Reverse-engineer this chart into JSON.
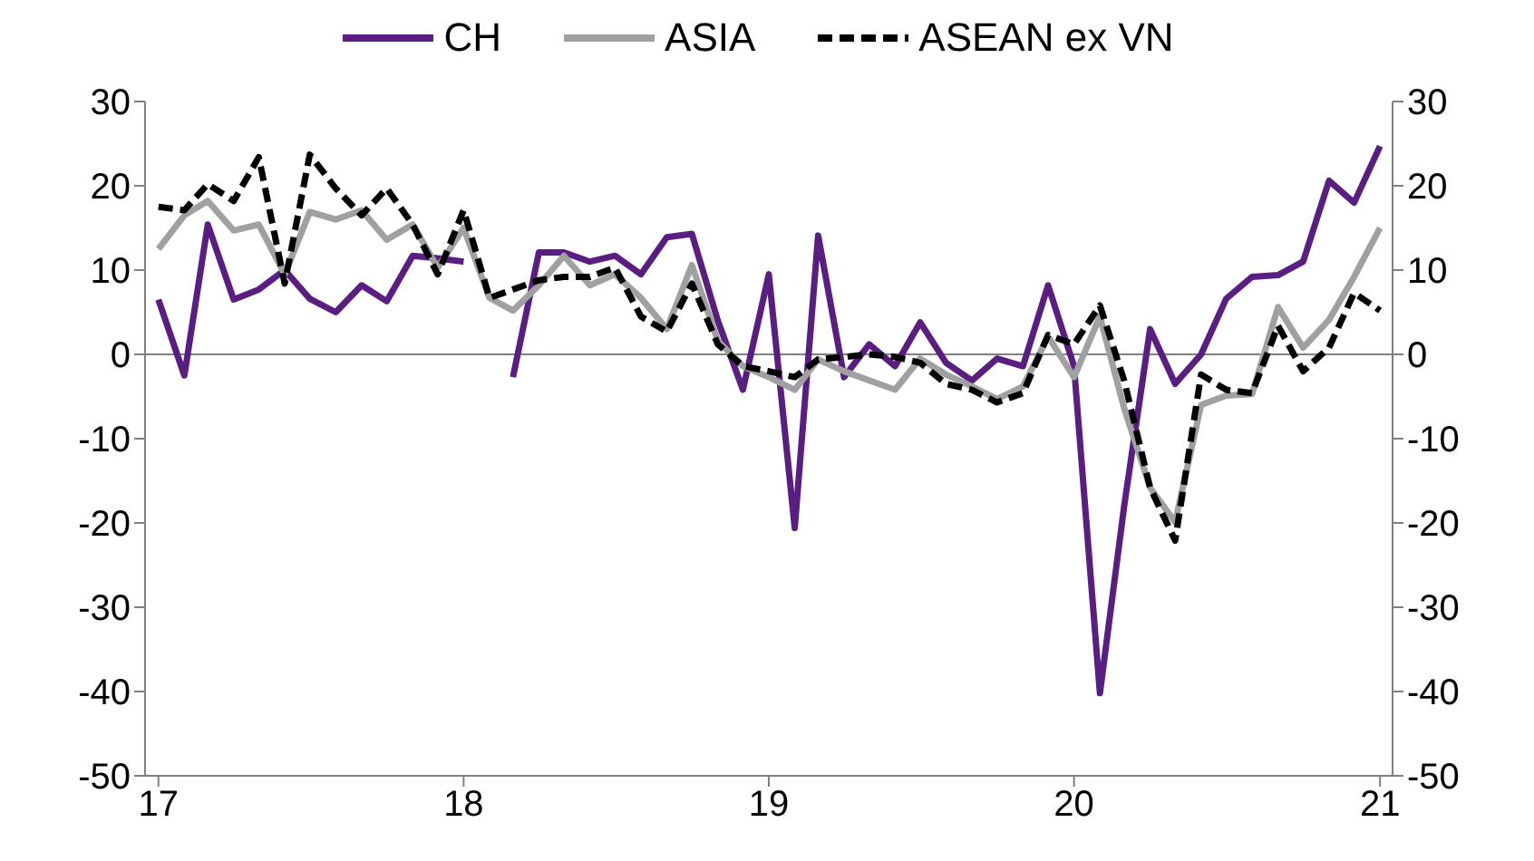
{
  "chart_data": {
    "type": "line",
    "x": [
      "2017-01",
      "2017-02",
      "2017-03",
      "2017-04",
      "2017-05",
      "2017-06",
      "2017-07",
      "2017-08",
      "2017-09",
      "2017-10",
      "2017-11",
      "2017-12",
      "2018-01",
      "2018-02",
      "2018-03",
      "2018-04",
      "2018-05",
      "2018-06",
      "2018-07",
      "2018-08",
      "2018-09",
      "2018-10",
      "2018-11",
      "2018-12",
      "2019-01",
      "2019-02",
      "2019-03",
      "2019-04",
      "2019-05",
      "2019-06",
      "2019-07",
      "2019-08",
      "2019-09",
      "2019-10",
      "2019-11",
      "2019-12",
      "2020-01",
      "2020-02",
      "2020-03",
      "2020-04",
      "2020-05",
      "2020-06",
      "2020-07",
      "2020-08",
      "2020-09",
      "2020-10",
      "2020-11",
      "2020-12",
      "2021-01"
    ],
    "series": [
      {
        "name": "CH",
        "color": "#5a1e82",
        "line_style": "solid",
        "values": [
          6.5,
          -2.5,
          15.4,
          6.5,
          7.7,
          10,
          6.6,
          5,
          8.2,
          6.3,
          11.7,
          11.4,
          11,
          null,
          -2.7,
          12.1,
          12.1,
          11,
          11.7,
          9.5,
          13.9,
          14.3,
          4,
          -4.2,
          9.5,
          -20.6,
          14.1,
          -2.7,
          1.2,
          -1.4,
          3.8,
          -1,
          -3.1,
          -0.5,
          -1.4,
          8.2,
          -1.4,
          -40.2,
          -18,
          3,
          -3.5,
          0,
          6.6,
          9.2,
          9.4,
          11,
          20.6,
          18,
          24.7
        ]
      },
      {
        "name": "ASIA",
        "color": "#a0a0a0",
        "line_style": "solid",
        "values": [
          12.5,
          16.5,
          18.2,
          14.7,
          15.4,
          9.5,
          16.9,
          16,
          17.1,
          13.6,
          15.4,
          10.3,
          15,
          6.7,
          5.2,
          8.2,
          11.7,
          8.2,
          9.5,
          6.7,
          3,
          10.6,
          1.6,
          -1.4,
          -2.7,
          -4.2,
          -0.6,
          -2,
          -3.1,
          -4.2,
          -0.5,
          -2.4,
          -3.8,
          -5.3,
          -3.8,
          2.1,
          -2.7,
          4.5,
          -6.4,
          -15.8,
          -19.9,
          -6,
          -4.9,
          -4.7,
          5.6,
          0.8,
          4.1,
          9.2,
          15
        ]
      },
      {
        "name": "ASEAN ex VN",
        "color": "#000000",
        "line_style": "dashed",
        "values": [
          17.5,
          17.1,
          20.2,
          18.2,
          23.4,
          8.4,
          23.7,
          19.7,
          16.5,
          19.7,
          15.4,
          9.5,
          17.1,
          6.7,
          7.7,
          8.8,
          9.2,
          9.2,
          10.3,
          4.5,
          2.7,
          8.4,
          1.2,
          -1.4,
          -2,
          -2.7,
          -0.6,
          -0.3,
          0,
          -0.3,
          -1,
          -3.5,
          -4.2,
          -5.7,
          -4.6,
          2.3,
          1.2,
          5.8,
          -3.1,
          -15.8,
          -22.1,
          -2.4,
          -4.2,
          -4.6,
          3.4,
          -2,
          0.8,
          7.3,
          5.2
        ]
      }
    ],
    "xlim": [
      "2016-12-16",
      "2021-01-16"
    ],
    "xticks": [
      {
        "value": "2017-01",
        "label": "17"
      },
      {
        "value": "2018-01",
        "label": "18"
      },
      {
        "value": "2019-01",
        "label": "19"
      },
      {
        "value": "2020-01",
        "label": "20"
      },
      {
        "value": "2021-01",
        "label": "21"
      }
    ],
    "ylim": [
      -50,
      30
    ],
    "yticks": [
      -50,
      -40,
      -30,
      -20,
      -10,
      0,
      10,
      20,
      30
    ],
    "y2lim": [
      -50,
      30
    ],
    "y2ticks": [
      -50,
      -40,
      -30,
      -20,
      -10,
      0,
      10,
      20,
      30
    ],
    "ref_lines": [
      {
        "axis": "y",
        "value": 0,
        "color": "#808080"
      }
    ],
    "legend": "top",
    "marker": "none"
  }
}
